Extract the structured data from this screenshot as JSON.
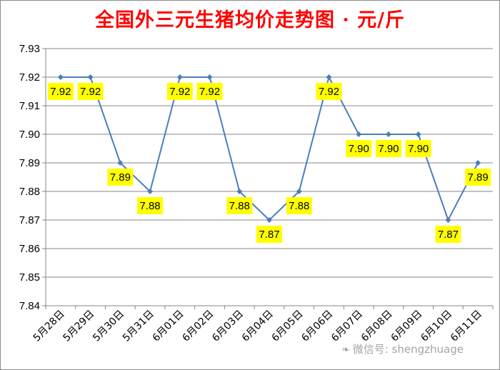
{
  "chart_data": {
    "type": "line",
    "title": "全国外三元生猪均价走势图 · 元/斤",
    "categories": [
      "5月28日",
      "5月29日",
      "5月30日",
      "5月31日",
      "6月01日",
      "6月02日",
      "6月03日",
      "6月04日",
      "6月05日",
      "6月06日",
      "6月07日",
      "6月08日",
      "6月09日",
      "6月10日",
      "6月11日"
    ],
    "series": [
      {
        "values": [
          7.92,
          7.92,
          7.89,
          7.88,
          7.92,
          7.92,
          7.88,
          7.87,
          7.88,
          7.92,
          7.9,
          7.9,
          7.9,
          7.87,
          7.89
        ]
      }
    ],
    "data_labels": [
      "7.92",
      "7.92",
      "7.89",
      "7.88",
      "7.92",
      "7.92",
      "7.88",
      "7.87",
      "7.88",
      "7.92",
      "7.90",
      "7.90",
      "7.90",
      "7.87",
      "7.89"
    ],
    "y_ticks": [
      "7.84",
      "7.85",
      "7.86",
      "7.87",
      "7.88",
      "7.89",
      "7.90",
      "7.91",
      "7.92",
      "7.93"
    ],
    "ylim": [
      7.84,
      7.93
    ],
    "grid": true,
    "line_color": "#4a7ebb",
    "label_background": "#ffff00"
  },
  "watermark": {
    "text": "微信号: shengzhuage",
    "icon": "wechat-icon"
  }
}
